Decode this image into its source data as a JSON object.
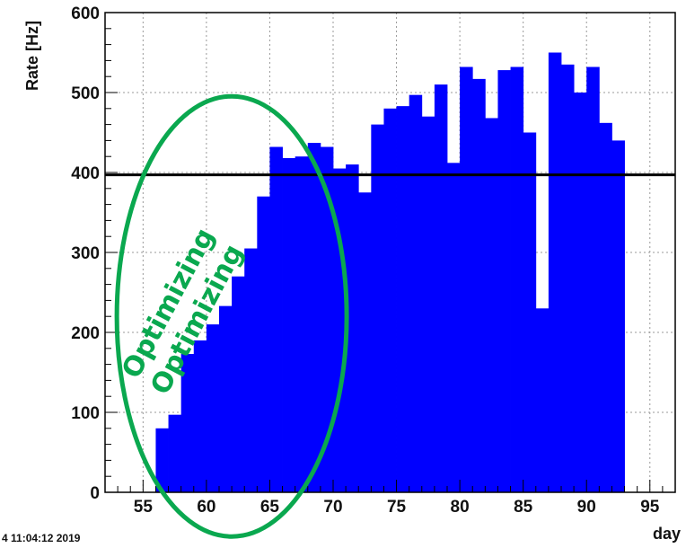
{
  "chart_data": {
    "type": "bar",
    "xlabel": "day",
    "ylabel": "Rate [Hz]",
    "xlim": [
      52,
      97
    ],
    "ylim": [
      0,
      600
    ],
    "xticks": [
      55,
      60,
      65,
      70,
      75,
      80,
      85,
      90,
      95
    ],
    "yticks": [
      0,
      100,
      200,
      300,
      400,
      500,
      600
    ],
    "grid": true,
    "bin_width": 1,
    "bins": [
      {
        "x": 56.5,
        "y": 80
      },
      {
        "x": 57.5,
        "y": 97
      },
      {
        "x": 58.5,
        "y": 173
      },
      {
        "x": 59.5,
        "y": 190
      },
      {
        "x": 60.5,
        "y": 210
      },
      {
        "x": 61.5,
        "y": 233
      },
      {
        "x": 62.5,
        "y": 270
      },
      {
        "x": 63.5,
        "y": 305
      },
      {
        "x": 64.5,
        "y": 370
      },
      {
        "x": 65.5,
        "y": 432
      },
      {
        "x": 66.5,
        "y": 418
      },
      {
        "x": 67.5,
        "y": 420
      },
      {
        "x": 68.5,
        "y": 437
      },
      {
        "x": 69.5,
        "y": 432
      },
      {
        "x": 70.5,
        "y": 405
      },
      {
        "x": 71.5,
        "y": 410
      },
      {
        "x": 72.5,
        "y": 375
      },
      {
        "x": 73.5,
        "y": 460
      },
      {
        "x": 74.5,
        "y": 480
      },
      {
        "x": 75.5,
        "y": 483
      },
      {
        "x": 76.5,
        "y": 497
      },
      {
        "x": 77.5,
        "y": 470
      },
      {
        "x": 78.5,
        "y": 510
      },
      {
        "x": 79.5,
        "y": 412
      },
      {
        "x": 80.5,
        "y": 532
      },
      {
        "x": 81.5,
        "y": 517
      },
      {
        "x": 82.5,
        "y": 468
      },
      {
        "x": 83.5,
        "y": 528
      },
      {
        "x": 84.5,
        "y": 532
      },
      {
        "x": 85.5,
        "y": 450
      },
      {
        "x": 86.5,
        "y": 230
      },
      {
        "x": 87.5,
        "y": 550
      },
      {
        "x": 88.5,
        "y": 535
      },
      {
        "x": 89.5,
        "y": 500
      },
      {
        "x": 90.5,
        "y": 532
      },
      {
        "x": 91.5,
        "y": 462
      },
      {
        "x": 92.5,
        "y": 440
      }
    ],
    "reference_line": {
      "y": 397,
      "color": "#000000"
    },
    "bar_color": "#0000ff",
    "annotation": {
      "texts": [
        "Optimizing",
        "Optimizing"
      ],
      "color": "#0aa84f",
      "ellipse_color": "#0aa84f",
      "center": {
        "x": 62,
        "y": 220
      }
    },
    "timestamp": "4 11:04:12 2019"
  }
}
